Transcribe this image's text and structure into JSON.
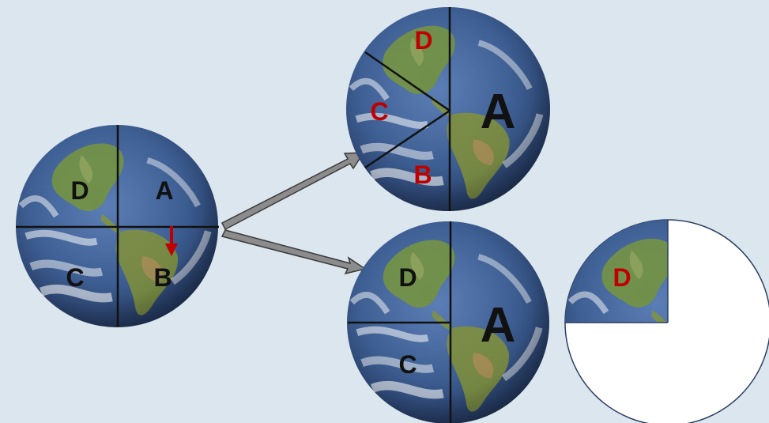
{
  "colors": {
    "background": "#dce6ee",
    "ocean": "#3d5f95",
    "land": "#6f8f4a",
    "label_black": "#111111",
    "label_red": "#c00000",
    "arrow": "#8c8c8c",
    "divider": "#111111"
  },
  "globe_left": {
    "labels": {
      "a": "A",
      "b": "B",
      "c": "C",
      "d": "D"
    },
    "has_red_arrow": true
  },
  "globe_top_right": {
    "labels": {
      "a": "A",
      "b": "B",
      "c": "C",
      "d": "D"
    },
    "red_labels": [
      "b",
      "c",
      "d"
    ]
  },
  "globe_bottom_right": {
    "labels": {
      "a": "A",
      "c": "C",
      "d": "D"
    }
  },
  "partial_disc": {
    "labels": {
      "d": "D"
    },
    "red_labels": [
      "d"
    ]
  }
}
